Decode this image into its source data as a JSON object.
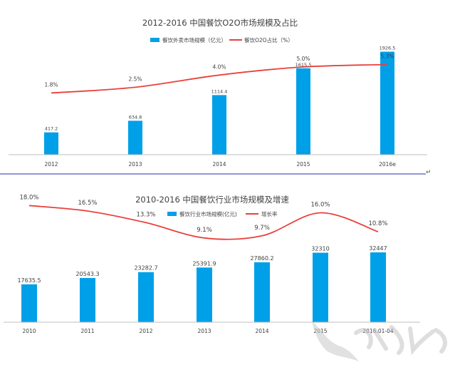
{
  "chart_data": [
    {
      "type": "bar",
      "title": "2012-2016 中国餐饮O2O市场规模及占比",
      "categories": [
        "2012",
        "2013",
        "2014",
        "2015",
        "2016e"
      ],
      "series": [
        {
          "name": "餐饮外卖市场规模（亿元）",
          "type": "bar",
          "values": [
            417.2,
            634.8,
            1114.4,
            1615.5,
            1926.5
          ],
          "labels": [
            "417.2",
            "634.8",
            "1114.4",
            "1615.5",
            "1926.5"
          ]
        },
        {
          "name": "餐饮O2O占比（%）",
          "type": "line",
          "values": [
            1.8,
            2.5,
            4.0,
            5.0,
            5.3
          ],
          "labels": [
            "1.8%",
            "2.5%",
            "4.0%",
            "5.0%",
            "5.3%"
          ]
        }
      ],
      "ylim": [
        0,
        2400
      ],
      "y2lim": [
        -5.8,
        8.5
      ],
      "legend": "top-center",
      "grid": false
    },
    {
      "type": "bar",
      "title": "2010-2016 中国餐饮行业市场规模及增速",
      "categories": [
        "2010",
        "2011",
        "2012",
        "2013",
        "2014",
        "2015",
        "2016.01-04"
      ],
      "series": [
        {
          "name": "餐饮行业市场规模(亿元)",
          "type": "bar",
          "values": [
            17635.5,
            20543.3,
            23282.7,
            25391.9,
            27860.2,
            32310,
            32447
          ],
          "labels": [
            "17635.5",
            "20543.3",
            "23282.7",
            "25391.9",
            "27860.2",
            "32310",
            "32447"
          ]
        },
        {
          "name": "增长率",
          "type": "line",
          "values": [
            18.0,
            16.5,
            13.3,
            9.1,
            9.7,
            16.0,
            10.8
          ],
          "labels": [
            "18.0%",
            "16.5%",
            "13.3%",
            "9.1%",
            "9.7%",
            "16.0%",
            "10.8%"
          ]
        }
      ],
      "ylim": [
        0,
        53000
      ],
      "y2lim": [
        -14,
        20.6
      ],
      "legend": "top-center",
      "grid": false
    }
  ],
  "colors": {
    "bar": "#00a0e9",
    "line": "#e8413c",
    "axis": "#bfbfbf",
    "divider": "#2233aa",
    "text": "#404040"
  }
}
